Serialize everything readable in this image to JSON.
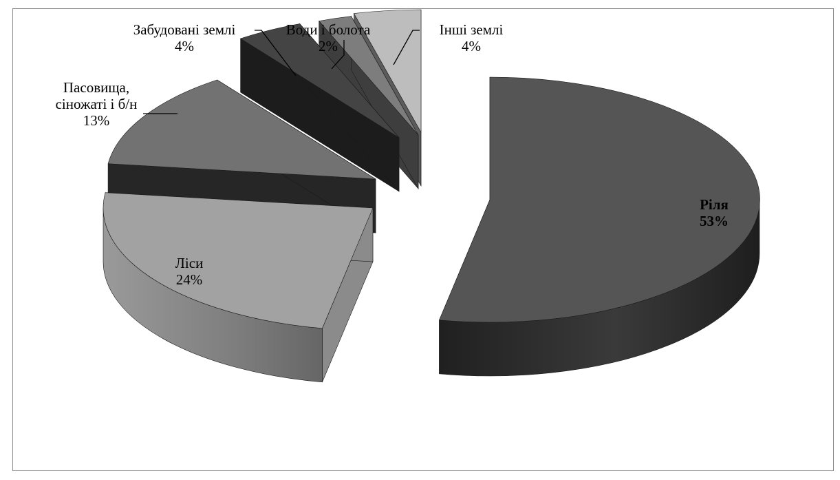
{
  "chart_data": {
    "type": "pie",
    "title": "",
    "three_d": true,
    "exploded": true,
    "legend": "none",
    "slices": [
      {
        "name": "Ріля",
        "value": 53,
        "label": "53%",
        "color": "#555555"
      },
      {
        "name": "Ліси",
        "value": 24,
        "label": "24%",
        "color": "#a2a2a2"
      },
      {
        "name": "Пасовища, сіножаті і б/н",
        "name_lines": [
          "Пасовища,",
          "сіножаті і б/н"
        ],
        "value": 13,
        "label": "13%",
        "color": "#727272"
      },
      {
        "name": "Забудовані землі",
        "value": 4,
        "label": "4%",
        "color": "#444444"
      },
      {
        "name": "Води і болота",
        "value": 2,
        "label": "2%",
        "color": "#7d7d7d"
      },
      {
        "name": "Інші землі",
        "value": 4,
        "label": "4%",
        "color": "#bdbdbd"
      }
    ]
  }
}
